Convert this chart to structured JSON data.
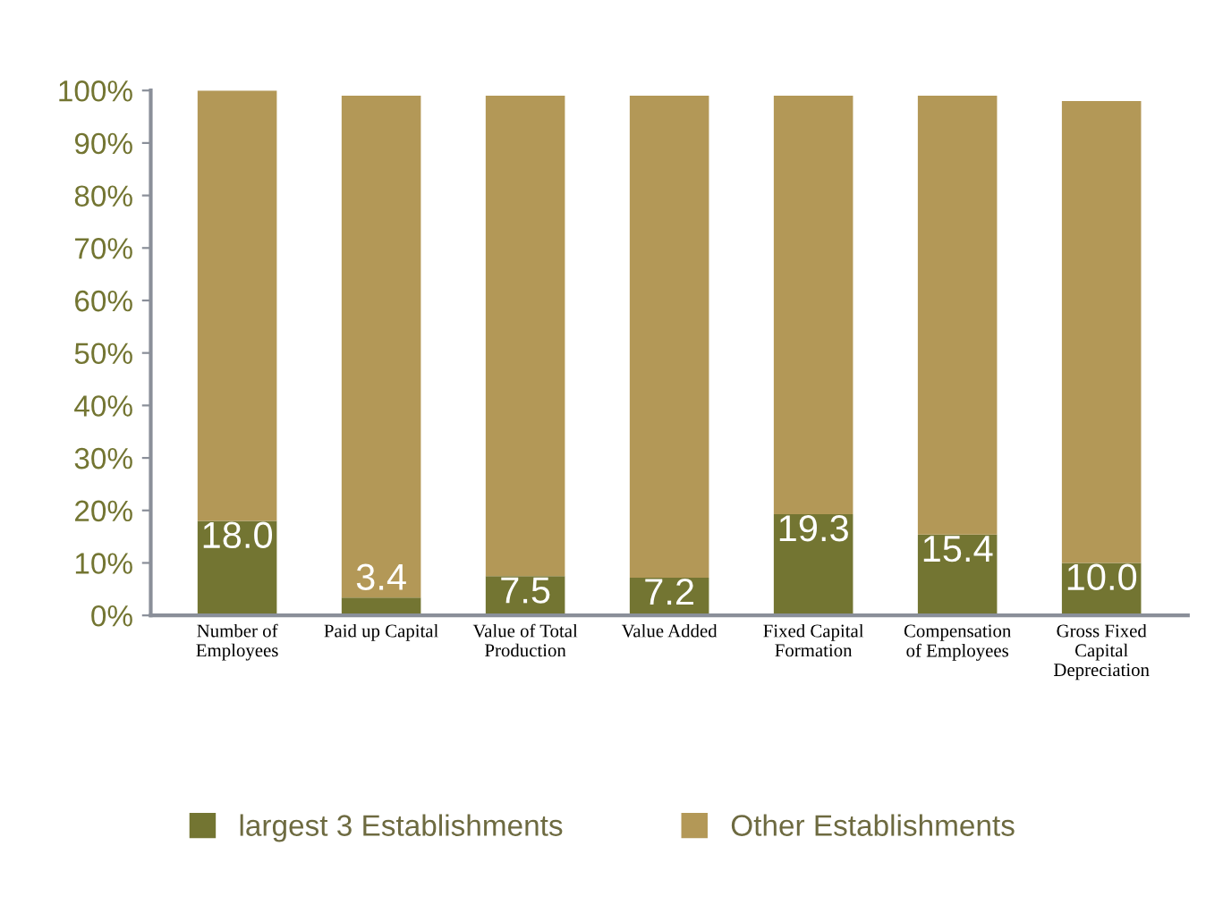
{
  "chart_data": {
    "type": "bar",
    "stacked": true,
    "categories": [
      "Number of\nEmployees",
      "Paid up Capital",
      "Value of Total\nProduction",
      "Value Added",
      "Fixed Capital\nFormation",
      "Compensation\nof Employees",
      "Gross Fixed\nCapital\nDepreciation"
    ],
    "series": [
      {
        "name": "largest 3 Establishments",
        "color": "#737532",
        "values": [
          18.0,
          3.4,
          7.5,
          7.2,
          19.3,
          15.4,
          10.0
        ],
        "value_labels": [
          "18.0",
          "3.4",
          "7.5",
          "7.2",
          "19.3",
          "15.4",
          "10.0"
        ]
      },
      {
        "name": "Other Establishments",
        "color": "#b39857",
        "values": [
          82.0,
          95.6,
          91.5,
          91.8,
          79.7,
          83.6,
          88.0
        ]
      }
    ],
    "ylim": [
      0,
      100
    ],
    "yticks": [
      {
        "value": 0,
        "label": "0%"
      },
      {
        "value": 10,
        "label": "10%"
      },
      {
        "value": 20,
        "label": "20%"
      },
      {
        "value": 30,
        "label": "30%"
      },
      {
        "value": 40,
        "label": "40%"
      },
      {
        "value": 50,
        "label": "50%"
      },
      {
        "value": 60,
        "label": "60%"
      },
      {
        "value": 70,
        "label": "70%"
      },
      {
        "value": 80,
        "label": "80%"
      },
      {
        "value": 90,
        "label": "90%"
      },
      {
        "value": 100,
        "label": "100%"
      }
    ],
    "grid": false,
    "legend": "bottom"
  }
}
